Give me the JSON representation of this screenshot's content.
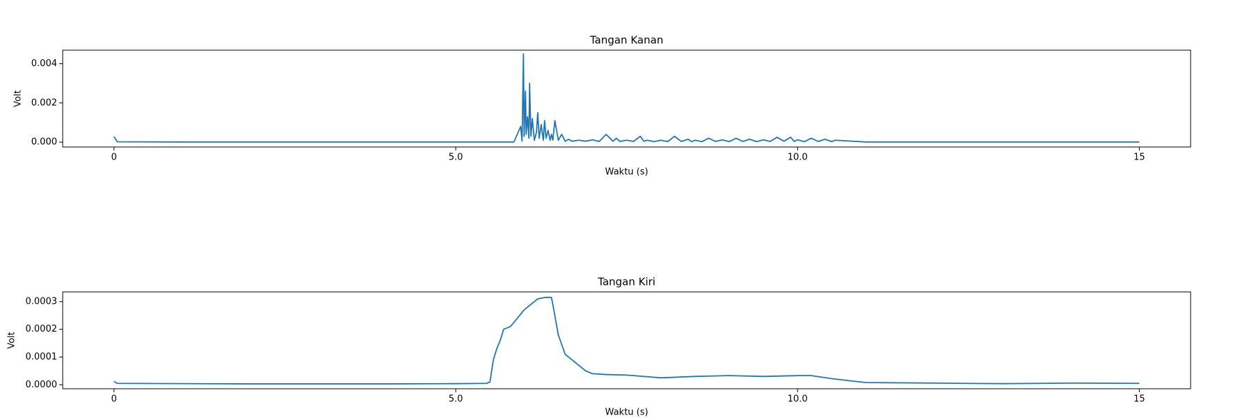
{
  "chart_data": [
    {
      "type": "line",
      "title": "Tangan Kanan",
      "xlabel": "Waktu (s)",
      "ylabel": "Volt",
      "color": "#1f77b4",
      "x": [
        0,
        0.05,
        1,
        2,
        3,
        4,
        5,
        5.85,
        5.95,
        5.97,
        5.99,
        6.0,
        6.02,
        6.03,
        6.05,
        6.07,
        6.08,
        6.1,
        6.12,
        6.15,
        6.18,
        6.2,
        6.22,
        6.25,
        6.28,
        6.3,
        6.32,
        6.35,
        6.38,
        6.4,
        6.42,
        6.45,
        6.5,
        6.55,
        6.6,
        6.65,
        6.7,
        6.8,
        6.9,
        7.0,
        7.1,
        7.2,
        7.3,
        7.35,
        7.4,
        7.5,
        7.6,
        7.7,
        7.75,
        7.8,
        7.9,
        8.0,
        8.1,
        8.2,
        8.3,
        8.4,
        8.45,
        8.5,
        8.6,
        8.7,
        8.8,
        8.9,
        9.0,
        9.1,
        9.2,
        9.3,
        9.4,
        9.5,
        9.6,
        9.7,
        9.8,
        9.9,
        9.95,
        10.0,
        10.1,
        10.2,
        10.3,
        10.4,
        10.5,
        10.55,
        11,
        12,
        13,
        14,
        15
      ],
      "values": [
        0.00028,
        2e-05,
        1e-05,
        1e-05,
        1e-05,
        1e-05,
        1e-05,
        1e-05,
        0.0008,
        5e-05,
        0.0045,
        0.0003,
        0.0026,
        0.0004,
        0.0013,
        0.0002,
        0.003,
        0.0003,
        0.0012,
        0.0001,
        0.0005,
        0.0015,
        0.0002,
        0.0009,
        0.0001,
        0.0011,
        0.0002,
        0.0006,
        0.0001,
        0.0004,
        0.0001,
        0.0011,
        0.0001,
        0.0004,
        5e-05,
        0.00015,
        5e-05,
        0.0001,
        5e-05,
        0.00012,
        4e-05,
        0.0004,
        5e-05,
        0.0002,
        4e-05,
        0.0001,
        4e-05,
        0.0003,
        5e-05,
        0.0001,
        3e-05,
        0.0001,
        3e-05,
        0.0003,
        4e-05,
        0.00015,
        3e-05,
        0.0001,
        3e-05,
        0.0002,
        4e-05,
        0.00012,
        3e-05,
        0.0002,
        4e-05,
        0.00015,
        3e-05,
        0.00012,
        4e-05,
        0.00025,
        5e-05,
        0.00025,
        4e-05,
        0.00012,
        3e-05,
        0.0002,
        4e-05,
        0.00015,
        3e-05,
        0.0001,
        1e-05,
        1e-05,
        1e-05,
        1e-05,
        1e-05
      ],
      "xlim": [
        -0.75,
        15.75
      ],
      "xticks": [
        0,
        {
          "value": 5,
          "label": "5.0"
        },
        {
          "value": 10,
          "label": "10.0"
        },
        15
      ],
      "ylim": [
        -0.000245,
        0.00469
      ],
      "yticks": [
        {
          "value": 0,
          "label": "0.000"
        },
        {
          "value": 0.002,
          "label": "0.002"
        },
        {
          "value": 0.004,
          "label": "0.004"
        }
      ]
    },
    {
      "type": "line",
      "title": "Tangan Kiri",
      "xlabel": "Waktu (s)",
      "ylabel": "Volt",
      "color": "#1f77b4",
      "x": [
        0,
        0.05,
        2,
        4,
        5,
        5.45,
        5.5,
        5.55,
        5.6,
        5.65,
        5.7,
        5.8,
        5.9,
        6.0,
        6.1,
        6.2,
        6.3,
        6.4,
        6.42,
        6.5,
        6.6,
        6.7,
        6.8,
        6.9,
        7.0,
        7.2,
        7.5,
        8.0,
        8.5,
        9.0,
        9.5,
        10.0,
        10.2,
        10.5,
        11.0,
        12,
        13,
        14,
        15
      ],
      "values": [
        1.2e-05,
        5e-06,
        3e-06,
        3e-06,
        4e-06,
        5e-06,
        1e-05,
        9e-05,
        0.00013,
        0.00016,
        0.0002,
        0.00021,
        0.00024,
        0.00027,
        0.00029,
        0.00031,
        0.000315,
        0.000315,
        0.00029,
        0.00018,
        0.00011,
        9e-05,
        7e-05,
        5e-05,
        4e-05,
        3.7e-05,
        3.5e-05,
        2.5e-05,
        3e-05,
        3.3e-05,
        3e-05,
        3.3e-05,
        3.3e-05,
        2.2e-05,
        8e-06,
        6e-06,
        4e-06,
        6e-06,
        5e-06
      ],
      "xlim": [
        -0.75,
        15.75
      ],
      "xticks": [
        0,
        {
          "value": 5,
          "label": "5.0"
        },
        {
          "value": 10,
          "label": "10.0"
        },
        15
      ],
      "ylim": [
        -1.44e-05,
        0.000335
      ],
      "yticks": [
        {
          "value": 0,
          "label": "0.0000"
        },
        {
          "value": 0.0001,
          "label": "0.0001"
        },
        {
          "value": 0.0002,
          "label": "0.0002"
        },
        {
          "value": 0.0003,
          "label": "0.0003"
        }
      ]
    }
  ]
}
